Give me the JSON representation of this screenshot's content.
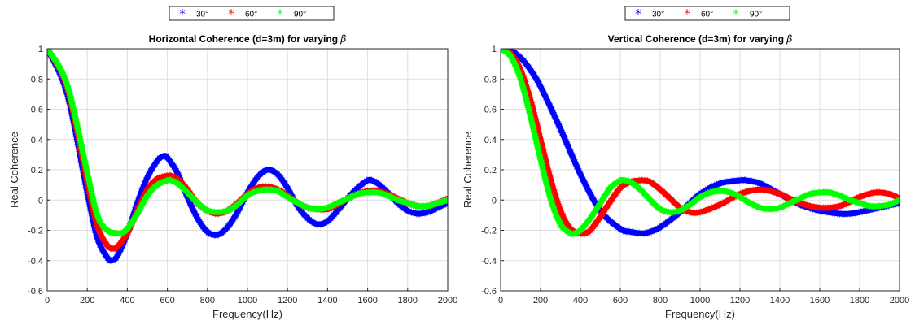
{
  "chart_data": [
    {
      "type": "line",
      "title": "Horizontal Coherence (d=3m) for varying ",
      "title_symbol": "β",
      "xlabel": "Frequency(Hz)",
      "ylabel": "Real Coherence",
      "xlim": [
        0,
        2000
      ],
      "ylim": [
        -0.6,
        1
      ],
      "xticks": [
        "0",
        "200",
        "400",
        "600",
        "800",
        "1000",
        "1200",
        "1400",
        "1600",
        "1800",
        "2000"
      ],
      "yticks": [
        "1",
        "0.8",
        "0.6",
        "0.4",
        "0.2",
        "0",
        "-0.2",
        "-0.4",
        "-0.6"
      ],
      "grid": true,
      "legend_placement": "top-center (outside)",
      "marker": "*",
      "series": [
        {
          "name": "30°",
          "color": "#0000ff",
          "x": [
            0,
            100,
            200,
            250,
            300,
            320,
            350,
            400,
            450,
            500,
            550,
            580,
            600,
            650,
            700,
            750,
            800,
            850,
            900,
            950,
            1000,
            1050,
            1100,
            1150,
            1200,
            1250,
            1300,
            1350,
            1400,
            1450,
            1500,
            1550,
            1600,
            1620,
            1650,
            1700,
            1750,
            1800,
            1850,
            1900,
            1950,
            2000
          ],
          "y": [
            1,
            0.7,
            0.05,
            -0.25,
            -0.38,
            -0.4,
            -0.37,
            -0.22,
            -0.02,
            0.15,
            0.26,
            0.29,
            0.28,
            0.18,
            0.02,
            -0.12,
            -0.21,
            -0.23,
            -0.18,
            -0.08,
            0.05,
            0.15,
            0.2,
            0.17,
            0.08,
            -0.04,
            -0.12,
            -0.16,
            -0.14,
            -0.07,
            0.01,
            0.08,
            0.13,
            0.13,
            0.11,
            0.05,
            -0.02,
            -0.07,
            -0.09,
            -0.08,
            -0.05,
            -0.02
          ]
        },
        {
          "name": "60°",
          "color": "#ff0000",
          "x": [
            0,
            100,
            200,
            250,
            300,
            330,
            350,
            400,
            450,
            500,
            550,
            600,
            620,
            650,
            700,
            750,
            800,
            850,
            900,
            950,
            1000,
            1050,
            1100,
            1150,
            1200,
            1250,
            1300,
            1350,
            1400,
            1450,
            1500,
            1550,
            1600,
            1650,
            1700,
            1750,
            1800,
            1850,
            1900,
            1950,
            2000
          ],
          "y": [
            1,
            0.74,
            0.12,
            -0.17,
            -0.3,
            -0.32,
            -0.31,
            -0.22,
            -0.07,
            0.07,
            0.14,
            0.16,
            0.16,
            0.14,
            0.07,
            -0.02,
            -0.07,
            -0.09,
            -0.07,
            -0.02,
            0.04,
            0.08,
            0.09,
            0.07,
            0.03,
            -0.02,
            -0.05,
            -0.06,
            -0.06,
            -0.03,
            0.01,
            0.04,
            0.06,
            0.06,
            0.04,
            0.01,
            -0.02,
            -0.04,
            -0.04,
            -0.02,
            0.01
          ]
        },
        {
          "name": "90°",
          "color": "#00ff00",
          "x": [
            0,
            100,
            200,
            250,
            300,
            350,
            370,
            400,
            450,
            500,
            550,
            600,
            620,
            650,
            700,
            750,
            800,
            850,
            900,
            950,
            1000,
            1050,
            1100,
            1150,
            1200,
            1250,
            1300,
            1350,
            1400,
            1450,
            1500,
            1550,
            1600,
            1650,
            1700,
            1750,
            1800,
            1850,
            1900,
            1950,
            2000
          ],
          "y": [
            1,
            0.76,
            0.18,
            -0.1,
            -0.2,
            -0.22,
            -0.22,
            -0.19,
            -0.09,
            0.03,
            0.1,
            0.13,
            0.13,
            0.11,
            0.05,
            -0.02,
            -0.07,
            -0.08,
            -0.07,
            -0.03,
            0.03,
            0.06,
            0.07,
            0.06,
            0.02,
            -0.02,
            -0.05,
            -0.06,
            -0.05,
            -0.02,
            0.01,
            0.04,
            0.05,
            0.05,
            0.03,
            0.0,
            -0.02,
            -0.04,
            -0.04,
            -0.02,
            0.0
          ]
        }
      ]
    },
    {
      "type": "line",
      "title": "Vertical Coherence (d=3m) for varying ",
      "title_symbol": "β",
      "xlabel": "Frequency(Hz)",
      "ylabel": "Real Coherence",
      "xlim": [
        0,
        2000
      ],
      "ylim": [
        -0.6,
        1
      ],
      "xticks": [
        "0",
        "200",
        "400",
        "600",
        "800",
        "1000",
        "1200",
        "1400",
        "1600",
        "1800",
        "2000"
      ],
      "yticks": [
        "1",
        "0.8",
        "0.6",
        "0.4",
        "0.2",
        "0",
        "-0.2",
        "-0.4",
        "-0.6"
      ],
      "grid": true,
      "legend_placement": "top-center (outside)",
      "marker": "*",
      "series": [
        {
          "name": "30°",
          "color": "#0000ff",
          "x": [
            0,
            50,
            100,
            150,
            200,
            300,
            400,
            500,
            600,
            650,
            700,
            720,
            750,
            800,
            900,
            1000,
            1100,
            1200,
            1230,
            1300,
            1400,
            1500,
            1600,
            1700,
            1750,
            1800,
            1900,
            2000
          ],
          "y": [
            1,
            0.99,
            0.94,
            0.86,
            0.75,
            0.47,
            0.17,
            -0.07,
            -0.19,
            -0.21,
            -0.22,
            -0.22,
            -0.21,
            -0.18,
            -0.08,
            0.04,
            0.11,
            0.13,
            0.13,
            0.11,
            0.04,
            -0.03,
            -0.07,
            -0.09,
            -0.09,
            -0.08,
            -0.05,
            -0.02
          ]
        },
        {
          "name": "60°",
          "color": "#ff0000",
          "x": [
            0,
            50,
            100,
            150,
            200,
            250,
            300,
            350,
            400,
            420,
            450,
            500,
            550,
            600,
            650,
            700,
            720,
            750,
            800,
            850,
            900,
            950,
            1000,
            1100,
            1200,
            1300,
            1400,
            1500,
            1600,
            1700,
            1800,
            1880,
            1950,
            2000
          ],
          "y": [
            1,
            0.97,
            0.86,
            0.66,
            0.4,
            0.14,
            -0.07,
            -0.19,
            -0.22,
            -0.22,
            -0.2,
            -0.11,
            -0.01,
            0.08,
            0.12,
            0.13,
            0.13,
            0.12,
            0.07,
            0.01,
            -0.05,
            -0.08,
            -0.08,
            -0.03,
            0.04,
            0.07,
            0.04,
            -0.02,
            -0.05,
            -0.04,
            0.02,
            0.05,
            0.04,
            0.01
          ]
        },
        {
          "name": "90°",
          "color": "#00ff00",
          "x": [
            0,
            50,
            100,
            150,
            200,
            250,
            300,
            350,
            370,
            400,
            450,
            500,
            550,
            600,
            620,
            650,
            700,
            750,
            800,
            850,
            900,
            950,
            1000,
            1050,
            1100,
            1150,
            1200,
            1250,
            1300,
            1350,
            1400,
            1450,
            1500,
            1550,
            1600,
            1650,
            1700,
            1750,
            1800,
            1850,
            1900,
            1950,
            2000
          ],
          "y": [
            1,
            0.95,
            0.8,
            0.55,
            0.27,
            0.01,
            -0.16,
            -0.22,
            -0.22,
            -0.2,
            -0.12,
            -0.02,
            0.08,
            0.13,
            0.13,
            0.12,
            0.07,
            0.0,
            -0.06,
            -0.08,
            -0.07,
            -0.03,
            0.02,
            0.05,
            0.06,
            0.05,
            0.02,
            -0.02,
            -0.05,
            -0.06,
            -0.05,
            -0.02,
            0.01,
            0.04,
            0.05,
            0.05,
            0.03,
            0.0,
            -0.02,
            -0.04,
            -0.04,
            -0.03,
            0.0
          ]
        }
      ]
    }
  ]
}
